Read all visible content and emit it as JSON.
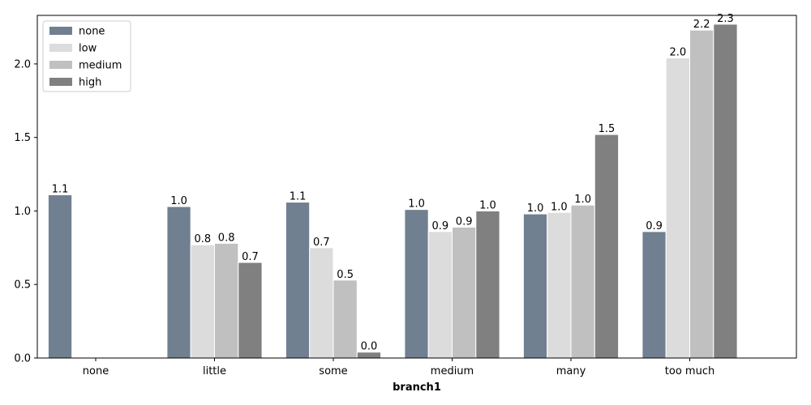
{
  "chart_data": {
    "type": "bar",
    "xlabel": "branch1",
    "ylabel": "",
    "ylim": [
      0,
      2.33
    ],
    "yticks": [
      0.0,
      0.5,
      1.0,
      1.5,
      2.0
    ],
    "categories": [
      "none",
      "little",
      "some",
      "medium",
      "many",
      "too much"
    ],
    "legend_position": "top-left",
    "series": [
      {
        "name": "none",
        "color": "#708090",
        "values": [
          1.11,
          1.03,
          1.06,
          1.01,
          0.98,
          0.86
        ],
        "labels": [
          "1.1",
          "1.0",
          "1.1",
          "1.0",
          "1.0",
          "0.9"
        ]
      },
      {
        "name": "low",
        "color": "#dcdcdc",
        "values": [
          null,
          0.77,
          0.75,
          0.86,
          0.99,
          2.04
        ],
        "labels": [
          "",
          "0.8",
          "0.7",
          "0.9",
          "1.0",
          "2.0"
        ]
      },
      {
        "name": "medium",
        "color": "#c0c0c0",
        "values": [
          null,
          0.78,
          0.53,
          0.89,
          1.04,
          2.23
        ],
        "labels": [
          "",
          "0.8",
          "0.5",
          "0.9",
          "1.0",
          "2.2"
        ]
      },
      {
        "name": "high",
        "color": "#808080",
        "values": [
          null,
          0.65,
          0.04,
          1.0,
          1.52,
          2.27
        ],
        "labels": [
          "",
          "0.7",
          "0.0",
          "1.0",
          "1.5",
          "2.3"
        ]
      }
    ]
  }
}
